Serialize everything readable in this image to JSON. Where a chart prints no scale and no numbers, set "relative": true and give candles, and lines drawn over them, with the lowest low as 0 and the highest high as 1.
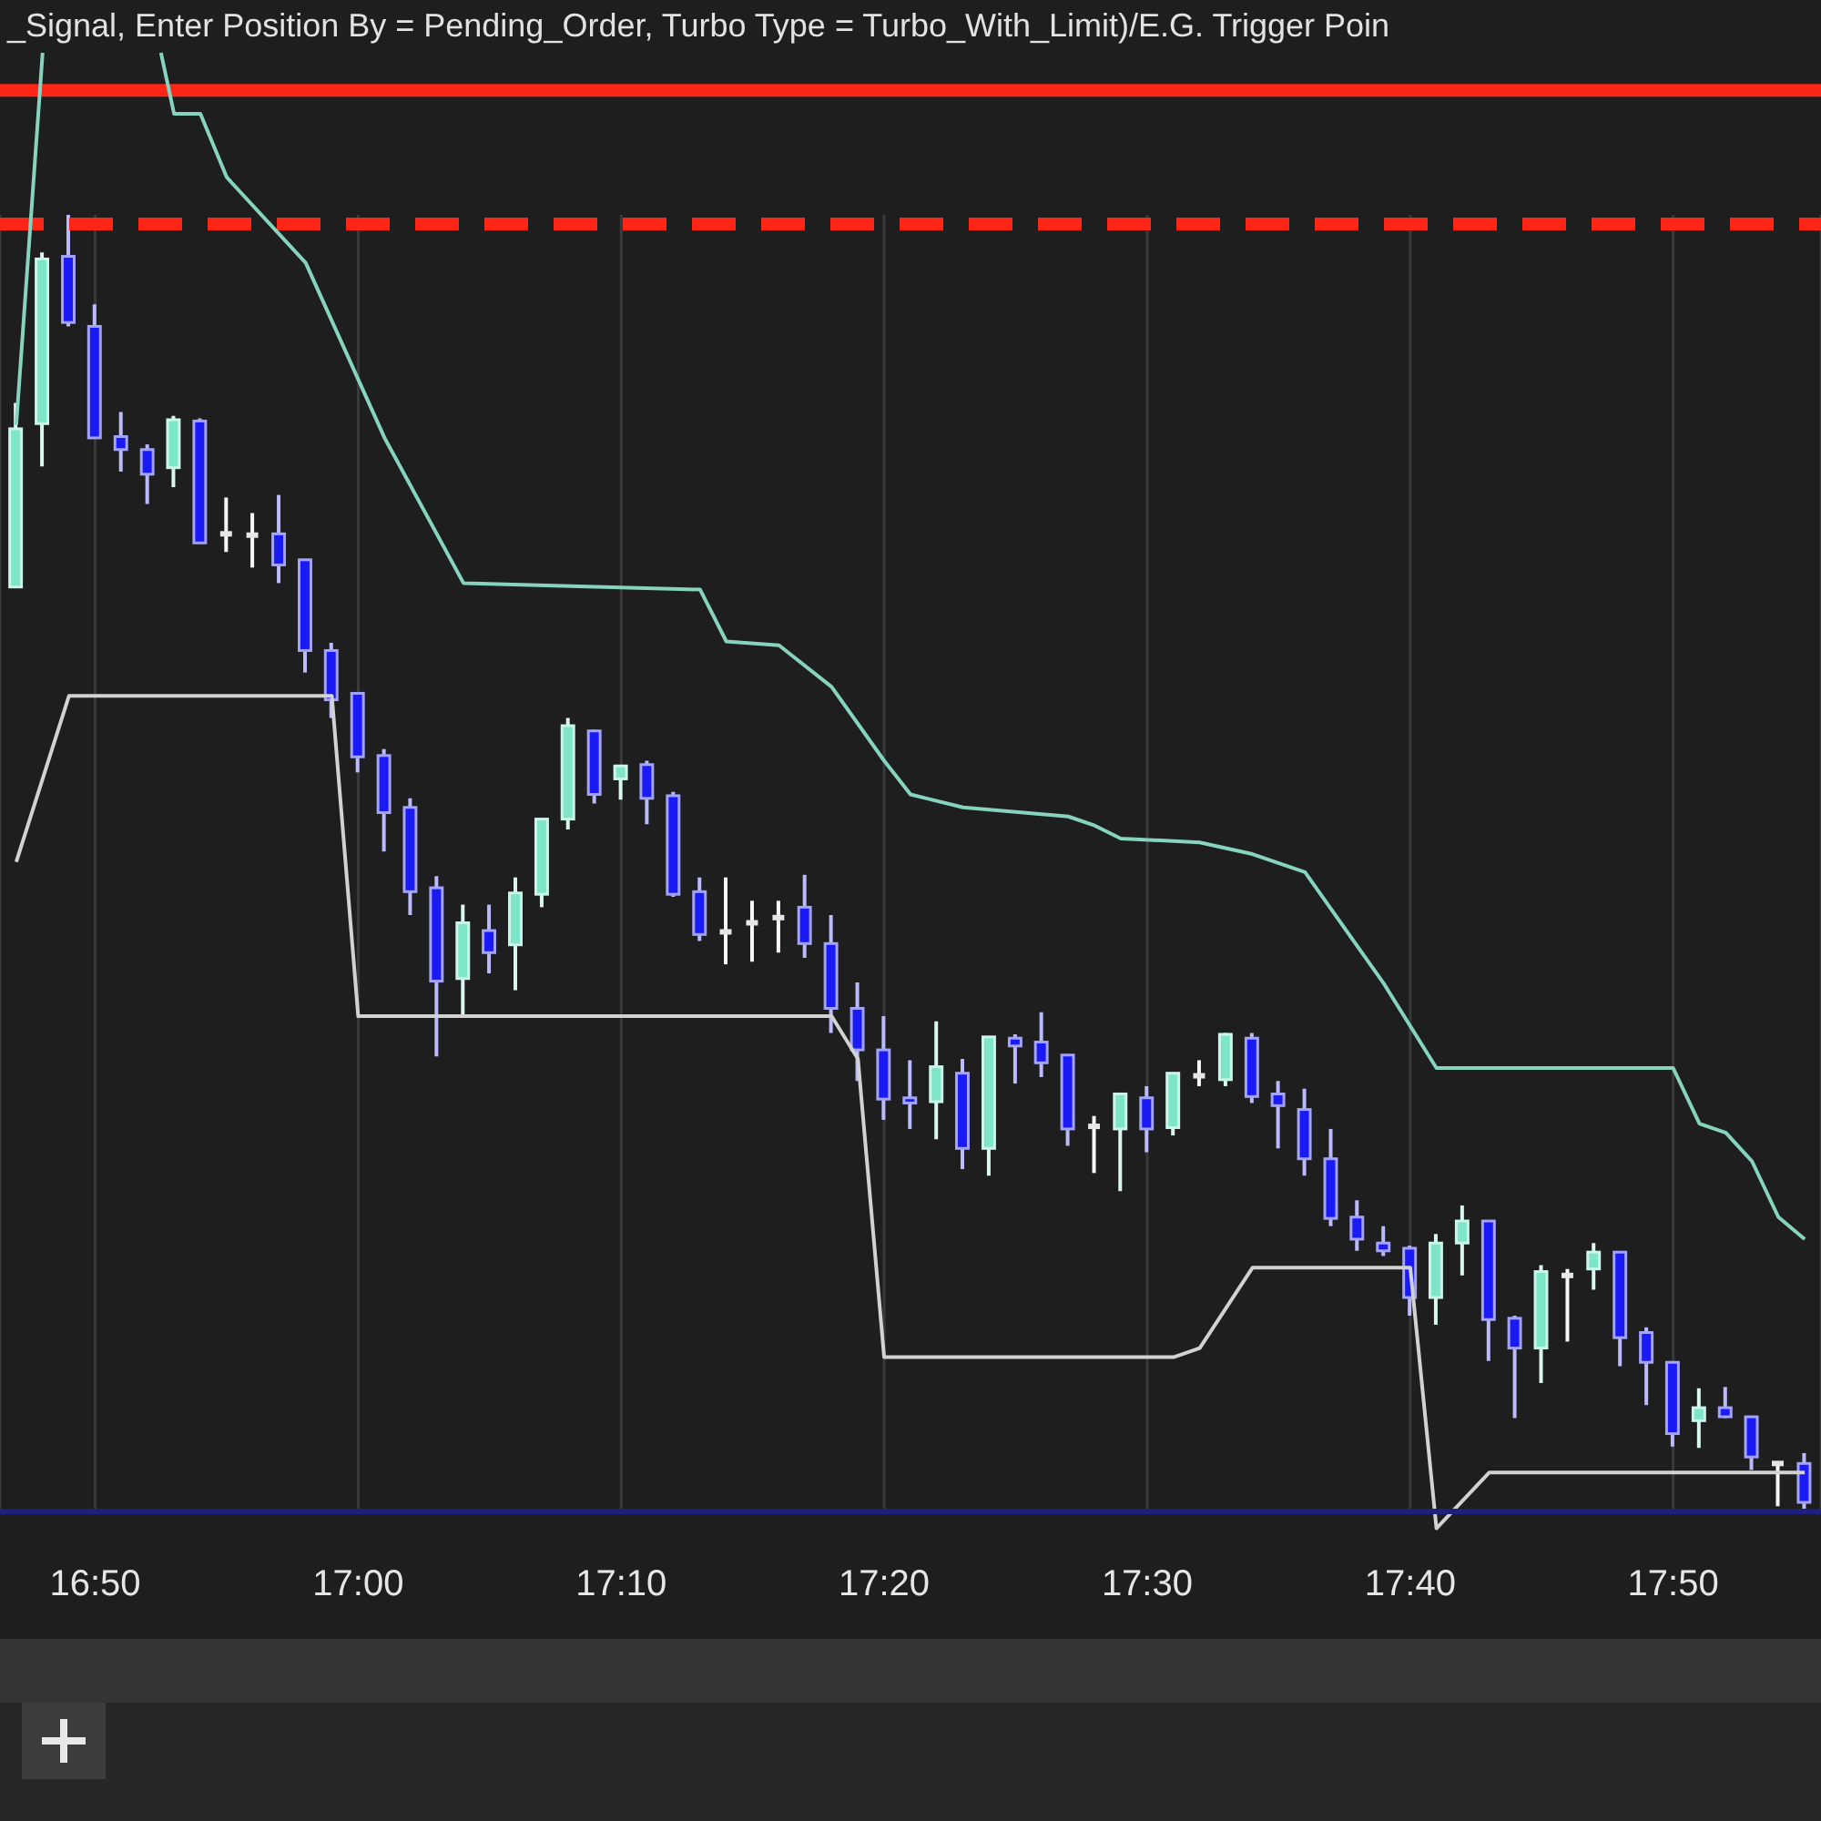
{
  "chart_data": {
    "type": "candlestick",
    "title": "_Signal, Enter Position By = Pending_Order, Turbo Type = Turbo_With_Limit)/E.G. Trigger Poin",
    "relative": true,
    "x": [
      16.7833,
      16.8,
      16.8167,
      16.8333,
      16.85,
      16.8667,
      16.8833,
      16.9,
      16.9167,
      16.9333,
      16.95,
      16.9667,
      16.9833,
      17,
      17.0167,
      17.0333,
      17.05,
      17.0667,
      17.0833,
      17.1,
      17.1167,
      17.1333,
      17.15,
      17.1667,
      17.1833,
      17.2,
      17.2167,
      17.2333,
      17.25,
      17.2667,
      17.2833,
      17.3,
      17.3167,
      17.3333,
      17.35,
      17.3667,
      17.3833,
      17.4,
      17.4167,
      17.4333,
      17.45,
      17.4667,
      17.4833,
      17.5,
      17.5167,
      17.5333,
      17.55,
      17.5667,
      17.5833,
      17.6,
      17.6167,
      17.6333,
      17.65,
      17.6667,
      17.6833,
      17.7,
      17.7167,
      17.7333,
      17.75,
      17.7667,
      17.7833,
      17.8,
      17.8167,
      17.8333,
      17.85,
      17.8667,
      17.8833,
      17.9,
      17.9167
    ],
    "ohlc": [
      [
        0.713,
        0.855,
        0.713,
        0.835
      ],
      [
        0.839,
        0.971,
        0.806,
        0.966
      ],
      [
        0.968,
        1.0,
        0.914,
        0.917
      ],
      [
        0.914,
        0.931,
        0.828,
        0.828
      ],
      [
        0.829,
        0.848,
        0.802,
        0.819
      ],
      [
        0.819,
        0.823,
        0.777,
        0.8
      ],
      [
        0.805,
        0.845,
        0.79,
        0.842
      ],
      [
        0.841,
        0.843,
        0.747,
        0.747
      ],
      [
        0.754,
        0.782,
        0.74,
        0.754
      ],
      [
        0.753,
        0.77,
        0.728,
        0.753
      ],
      [
        0.754,
        0.784,
        0.716,
        0.73
      ],
      [
        0.734,
        0.734,
        0.647,
        0.664
      ],
      [
        0.664,
        0.67,
        0.612,
        0.626
      ],
      [
        0.631,
        0.632,
        0.57,
        0.582
      ],
      [
        0.583,
        0.588,
        0.509,
        0.539
      ],
      [
        0.543,
        0.55,
        0.46,
        0.478
      ],
      [
        0.481,
        0.49,
        0.351,
        0.409
      ],
      [
        0.411,
        0.468,
        0.382,
        0.454
      ],
      [
        0.448,
        0.468,
        0.415,
        0.431
      ],
      [
        0.437,
        0.489,
        0.402,
        0.477
      ],
      [
        0.476,
        0.534,
        0.466,
        0.534
      ],
      [
        0.534,
        0.612,
        0.526,
        0.606
      ],
      [
        0.602,
        0.603,
        0.546,
        0.553
      ],
      [
        0.565,
        0.575,
        0.549,
        0.575
      ],
      [
        0.576,
        0.579,
        0.53,
        0.55
      ],
      [
        0.552,
        0.555,
        0.474,
        0.476
      ],
      [
        0.478,
        0.489,
        0.44,
        0.445
      ],
      [
        0.447,
        0.489,
        0.422,
        0.447
      ],
      [
        0.454,
        0.471,
        0.424,
        0.454
      ],
      [
        0.458,
        0.471,
        0.431,
        0.458
      ],
      [
        0.466,
        0.491,
        0.427,
        0.438
      ],
      [
        0.438,
        0.46,
        0.369,
        0.388
      ],
      [
        0.388,
        0.408,
        0.332,
        0.356
      ],
      [
        0.356,
        0.382,
        0.302,
        0.318
      ],
      [
        0.319,
        0.348,
        0.295,
        0.315
      ],
      [
        0.316,
        0.378,
        0.287,
        0.343
      ],
      [
        0.338,
        0.349,
        0.264,
        0.28
      ],
      [
        0.28,
        0.366,
        0.259,
        0.366
      ],
      [
        0.365,
        0.368,
        0.33,
        0.359
      ],
      [
        0.362,
        0.385,
        0.335,
        0.346
      ],
      [
        0.352,
        0.352,
        0.282,
        0.295
      ],
      [
        0.297,
        0.305,
        0.261,
        0.297
      ],
      [
        0.295,
        0.323,
        0.247,
        0.322
      ],
      [
        0.319,
        0.328,
        0.277,
        0.295
      ],
      [
        0.296,
        0.338,
        0.29,
        0.338
      ],
      [
        0.336,
        0.348,
        0.328,
        0.336
      ],
      [
        0.333,
        0.369,
        0.328,
        0.368
      ],
      [
        0.365,
        0.369,
        0.315,
        0.32
      ],
      [
        0.322,
        0.332,
        0.28,
        0.313
      ],
      [
        0.31,
        0.326,
        0.259,
        0.272
      ],
      [
        0.272,
        0.295,
        0.22,
        0.226
      ],
      [
        0.227,
        0.24,
        0.201,
        0.21
      ],
      [
        0.207,
        0.22,
        0.197,
        0.201
      ],
      [
        0.203,
        0.205,
        0.151,
        0.165
      ],
      [
        0.165,
        0.214,
        0.144,
        0.207
      ],
      [
        0.207,
        0.236,
        0.182,
        0.224
      ],
      [
        0.224,
        0.224,
        0.116,
        0.148
      ],
      [
        0.149,
        0.151,
        0.072,
        0.126
      ],
      [
        0.126,
        0.19,
        0.099,
        0.185
      ],
      [
        0.182,
        0.187,
        0.131,
        0.182
      ],
      [
        0.187,
        0.207,
        0.171,
        0.2
      ],
      [
        0.2,
        0.2,
        0.112,
        0.134
      ],
      [
        0.138,
        0.142,
        0.082,
        0.115
      ],
      [
        0.115,
        0.115,
        0.05,
        0.06
      ],
      [
        0.07,
        0.095,
        0.049,
        0.08
      ],
      [
        0.08,
        0.096,
        0.072,
        0.073
      ],
      [
        0.073,
        0.073,
        0.032,
        0.042
      ],
      [
        0.037,
        0.037,
        0.004,
        0.037
      ],
      [
        0.037,
        0.045,
        0.0,
        0.007
      ]
    ],
    "colors": [
      "#7fe5c9",
      "#7fe5c9",
      "#1a1af5",
      "#1a1af5",
      "#1a1af5",
      "#1a1af5",
      "#7fe5c9",
      "#1a1af5",
      "#e6e6e6",
      "#e6e6e6",
      "#1a1af5",
      "#1a1af5",
      "#1a1af5",
      "#1a1af5",
      "#1a1af5",
      "#1a1af5",
      "#1a1af5",
      "#7fe5c9",
      "#1a1af5",
      "#7fe5c9",
      "#7fe5c9",
      "#7fe5c9",
      "#1a1af5",
      "#7fe5c9",
      "#1a1af5",
      "#1a1af5",
      "#1a1af5",
      "#e6e6e6",
      "#e6e6e6",
      "#e6e6e6",
      "#1a1af5",
      "#1a1af5",
      "#1a1af5",
      "#1a1af5",
      "#1a1af5",
      "#7fe5c9",
      "#1a1af5",
      "#7fe5c9",
      "#1a1af5",
      "#1a1af5",
      "#1a1af5",
      "#e6e6e6",
      "#7fe5c9",
      "#1a1af5",
      "#7fe5c9",
      "#e6e6e6",
      "#7fe5c9",
      "#1a1af5",
      "#1a1af5",
      "#1a1af5",
      "#1a1af5",
      "#1a1af5",
      "#1a1af5",
      "#1a1af5",
      "#7fe5c9",
      "#7fe5c9",
      "#1a1af5",
      "#1a1af5",
      "#7fe5c9",
      "#e6e6e6",
      "#7fe5c9",
      "#1a1af5",
      "#1a1af5",
      "#1a1af5",
      "#7fe5c9",
      "#1a1af5",
      "#1a1af5",
      "#e6e6e6",
      "#1a1af5"
    ],
    "series": [
      {
        "type": "line",
        "color": "#86d4bf",
        "x": [
          16.7833,
          16.8,
          16.8333,
          16.875,
          16.8833,
          16.9,
          16.9167,
          16.9667,
          17.0167,
          17.0667,
          17.2167,
          17.2333,
          17.2667,
          17.3,
          17.3333,
          17.35,
          17.3833,
          17.45,
          17.4667,
          17.4833,
          17.5333,
          17.5667,
          17.6,
          17.65,
          17.6833,
          17.8333,
          17.85,
          17.8667,
          17.8833,
          17.9,
          17.9167
        ],
        "values": [
          0.838,
          1.125,
          null,
          1.125,
          1.078,
          1.078,
          1.029,
          0.963,
          0.828,
          0.716,
          0.711,
          0.671,
          0.668,
          0.636,
          0.579,
          0.553,
          0.543,
          0.536,
          0.529,
          0.519,
          0.516,
          0.507,
          0.493,
          0.407,
          0.342,
          0.342,
          0.299,
          0.292,
          0.27,
          0.227,
          0.21
        ]
      },
      {
        "type": "line",
        "color": "#d2d2d2",
        "x": [
          16.7833,
          16.8167,
          16.9833,
          17,
          17.3,
          17.3167,
          17.3333,
          17.5167,
          17.5333,
          17.5667,
          17.6667,
          17.6833,
          17.7167,
          17.9167
        ],
        "values": [
          0.501,
          0.629,
          0.629,
          0.382,
          0.382,
          0.349,
          0.119,
          0.119,
          0.126,
          0.188,
          0.188,
          -0.013,
          0.03,
          0.03
        ]
      }
    ],
    "ref_lines": [
      {
        "axis": "y",
        "value": 1.096,
        "color": "#ff2618",
        "line_style": "solid"
      },
      {
        "axis": "y",
        "value": 0.993,
        "color": "#ff2618",
        "line_style": "dashed"
      }
    ],
    "xlim": [
      16.773,
      17.927
    ],
    "xticks": [
      {
        "value": 16.8333,
        "label": "16:50"
      },
      {
        "value": 17,
        "label": "17:00"
      },
      {
        "value": 17.1667,
        "label": "17:10"
      },
      {
        "value": 17.3333,
        "label": "17:20"
      },
      {
        "value": 17.5,
        "label": "17:30"
      },
      {
        "value": 17.6667,
        "label": "17:40"
      },
      {
        "value": 17.8333,
        "label": "17:50"
      }
    ],
    "grid": "x",
    "tick_labels": "x",
    "marker": "none"
  }
}
